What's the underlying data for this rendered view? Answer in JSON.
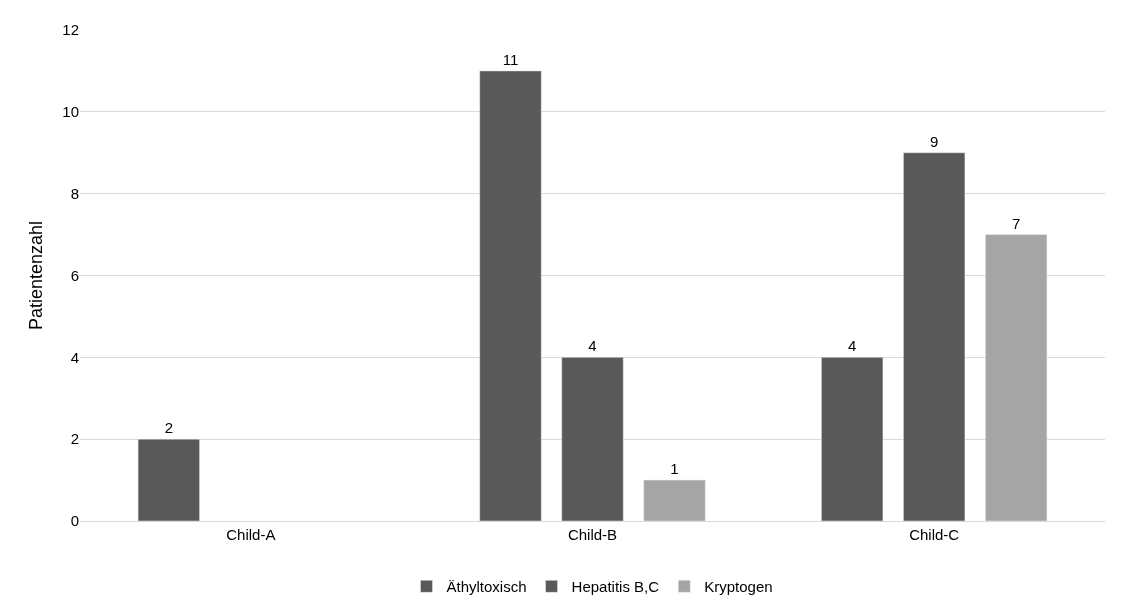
{
  "chart_data": {
    "type": "bar",
    "ylabel": "Patientenzahl",
    "categories": [
      "Child-A",
      "Child-B",
      "Child-C"
    ],
    "series": [
      {
        "name": "Äthyltoxisch",
        "color": "#595959",
        "values": [
          2,
          11,
          4
        ]
      },
      {
        "name": "Hepatitis B,C",
        "color": "#595959",
        "values": [
          null,
          4,
          9
        ]
      },
      {
        "name": "Kryptogen",
        "color": "#a5a5a5",
        "values": [
          null,
          1,
          7
        ]
      }
    ],
    "ylim": [
      0,
      12
    ],
    "yticks": [
      0,
      2,
      4,
      6,
      8,
      10,
      12
    ],
    "grid": "y",
    "legend": "bottom",
    "data_labels": true
  }
}
